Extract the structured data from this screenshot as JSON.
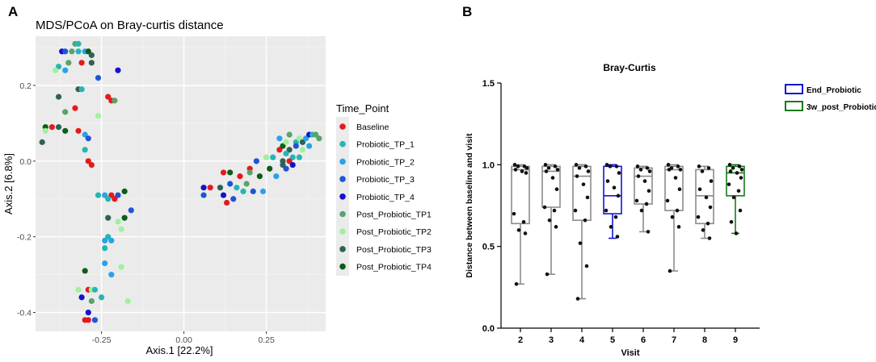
{
  "panels": {
    "a_label": "A",
    "b_label": "B"
  },
  "chart_data": [
    {
      "id": "pcoa",
      "type": "scatter",
      "title": "MDS/PCoA on Bray-curtis distance",
      "xlabel": "Axis.1   [22.2%]",
      "ylabel": "Axis.2   [6.8%]",
      "xlim": [
        -0.45,
        0.43
      ],
      "ylim": [
        -0.45,
        0.33
      ],
      "xticks": [
        -0.25,
        0.0,
        0.25
      ],
      "xtick_labels": [
        "-0.25",
        "0.00",
        "0.25"
      ],
      "yticks": [
        0.2,
        0.0,
        -0.2,
        -0.4
      ],
      "ytick_labels": [
        "0.2",
        "0.0",
        "-0.2",
        "-0.4"
      ],
      "grid": true,
      "legend": {
        "title": "Time_Point",
        "placement": "right",
        "entries": [
          {
            "name": "Baseline",
            "color": "#e31a1c"
          },
          {
            "name": "Probiotic_TP_1",
            "color": "#26b5b5"
          },
          {
            "name": "Probiotic_TP_2",
            "color": "#29a3e8"
          },
          {
            "name": "Probiotic_TP_3",
            "color": "#1f55d6"
          },
          {
            "name": "Probiotic_TP_4",
            "color": "#1212cf"
          },
          {
            "name": "Post_Probiotic_TP1",
            "color": "#5aa36a"
          },
          {
            "name": "Post_Probiotic_TP2",
            "color": "#9ef29e"
          },
          {
            "name": "Post_Probiotic_TP3",
            "color": "#2f6155"
          },
          {
            "name": "Post_Probiotic_TP4",
            "color": "#0b5e18"
          }
        ]
      },
      "points": [
        {
          "x": -0.37,
          "y": 0.29,
          "g": 4
        },
        {
          "x": -0.36,
          "y": 0.29,
          "g": 3
        },
        {
          "x": -0.33,
          "y": 0.31,
          "g": 5
        },
        {
          "x": -0.32,
          "y": 0.31,
          "g": 1
        },
        {
          "x": -0.34,
          "y": 0.29,
          "g": 5
        },
        {
          "x": -0.32,
          "y": 0.29,
          "g": 1
        },
        {
          "x": -0.3,
          "y": 0.29,
          "g": 2
        },
        {
          "x": -0.29,
          "y": 0.29,
          "g": 8
        },
        {
          "x": -0.28,
          "y": 0.28,
          "g": 7
        },
        {
          "x": -0.35,
          "y": 0.26,
          "g": 5
        },
        {
          "x": -0.31,
          "y": 0.26,
          "g": 0
        },
        {
          "x": -0.28,
          "y": 0.26,
          "g": 7
        },
        {
          "x": -0.38,
          "y": 0.25,
          "g": 1
        },
        {
          "x": -0.39,
          "y": 0.24,
          "g": 6
        },
        {
          "x": -0.36,
          "y": 0.24,
          "g": 2
        },
        {
          "x": -0.26,
          "y": 0.22,
          "g": 3
        },
        {
          "x": -0.32,
          "y": 0.19,
          "g": 7
        },
        {
          "x": -0.31,
          "y": 0.19,
          "g": 1
        },
        {
          "x": -0.2,
          "y": 0.24,
          "g": 4
        },
        {
          "x": -0.23,
          "y": 0.17,
          "g": 0
        },
        {
          "x": -0.22,
          "y": 0.16,
          "g": 0
        },
        {
          "x": -0.21,
          "y": 0.16,
          "g": 5
        },
        {
          "x": -0.38,
          "y": 0.17,
          "g": 7
        },
        {
          "x": -0.33,
          "y": 0.14,
          "g": 0
        },
        {
          "x": -0.36,
          "y": 0.13,
          "g": 5
        },
        {
          "x": -0.26,
          "y": 0.12,
          "g": 6
        },
        {
          "x": -0.42,
          "y": 0.09,
          "g": 8
        },
        {
          "x": -0.4,
          "y": 0.09,
          "g": 0
        },
        {
          "x": -0.38,
          "y": 0.09,
          "g": 7
        },
        {
          "x": -0.36,
          "y": 0.08,
          "g": 8
        },
        {
          "x": -0.32,
          "y": 0.08,
          "g": 0
        },
        {
          "x": -0.3,
          "y": 0.07,
          "g": 2
        },
        {
          "x": -0.29,
          "y": 0.06,
          "g": 3
        },
        {
          "x": -0.43,
          "y": 0.05,
          "g": 7
        },
        {
          "x": -0.42,
          "y": 0.08,
          "g": 6
        },
        {
          "x": -0.3,
          "y": 0.03,
          "g": 1
        },
        {
          "x": -0.29,
          "y": 0.0,
          "g": 0
        },
        {
          "x": -0.28,
          "y": -0.01,
          "g": 0
        },
        {
          "x": -0.26,
          "y": -0.09,
          "g": 1
        },
        {
          "x": -0.24,
          "y": -0.09,
          "g": 2
        },
        {
          "x": -0.22,
          "y": -0.09,
          "g": 0
        },
        {
          "x": -0.2,
          "y": -0.09,
          "g": 3
        },
        {
          "x": -0.18,
          "y": -0.08,
          "g": 8
        },
        {
          "x": -0.21,
          "y": -0.1,
          "g": 0
        },
        {
          "x": -0.23,
          "y": -0.1,
          "g": 1
        },
        {
          "x": -0.16,
          "y": -0.13,
          "g": 3
        },
        {
          "x": -0.18,
          "y": -0.15,
          "g": 8
        },
        {
          "x": -0.2,
          "y": -0.16,
          "g": 6
        },
        {
          "x": -0.23,
          "y": -0.15,
          "g": 7
        },
        {
          "x": -0.24,
          "y": -0.21,
          "g": 2
        },
        {
          "x": -0.23,
          "y": -0.2,
          "g": 1
        },
        {
          "x": -0.22,
          "y": -0.21,
          "g": 2
        },
        {
          "x": -0.24,
          "y": -0.23,
          "g": 1
        },
        {
          "x": -0.19,
          "y": -0.18,
          "g": 6
        },
        {
          "x": -0.24,
          "y": -0.27,
          "g": 2
        },
        {
          "x": -0.19,
          "y": -0.28,
          "g": 6
        },
        {
          "x": -0.22,
          "y": -0.3,
          "g": 2
        },
        {
          "x": -0.3,
          "y": -0.29,
          "g": 8
        },
        {
          "x": -0.32,
          "y": -0.34,
          "g": 6
        },
        {
          "x": -0.29,
          "y": -0.34,
          "g": 0
        },
        {
          "x": -0.28,
          "y": -0.34,
          "g": 6
        },
        {
          "x": -0.25,
          "y": -0.36,
          "g": 1
        },
        {
          "x": -0.27,
          "y": -0.34,
          "g": 1
        },
        {
          "x": -0.31,
          "y": -0.36,
          "g": 4
        },
        {
          "x": -0.28,
          "y": -0.37,
          "g": 5
        },
        {
          "x": -0.17,
          "y": -0.37,
          "g": 6
        },
        {
          "x": -0.29,
          "y": -0.4,
          "g": 4
        },
        {
          "x": -0.29,
          "y": -0.42,
          "g": 0
        },
        {
          "x": -0.27,
          "y": -0.42,
          "g": 3
        },
        {
          "x": -0.3,
          "y": -0.42,
          "g": 0
        },
        {
          "x": 0.06,
          "y": -0.07,
          "g": 4
        },
        {
          "x": 0.06,
          "y": -0.09,
          "g": 3
        },
        {
          "x": 0.08,
          "y": -0.07,
          "g": 0
        },
        {
          "x": 0.11,
          "y": -0.07,
          "g": 7
        },
        {
          "x": 0.12,
          "y": -0.09,
          "g": 4
        },
        {
          "x": 0.13,
          "y": -0.11,
          "g": 0
        },
        {
          "x": 0.14,
          "y": -0.06,
          "g": 3
        },
        {
          "x": 0.15,
          "y": -0.1,
          "g": 3
        },
        {
          "x": 0.16,
          "y": -0.07,
          "g": 1
        },
        {
          "x": 0.17,
          "y": -0.04,
          "g": 0
        },
        {
          "x": 0.18,
          "y": -0.08,
          "g": 1
        },
        {
          "x": 0.19,
          "y": -0.06,
          "g": 5
        },
        {
          "x": 0.2,
          "y": -0.02,
          "g": 0
        },
        {
          "x": 0.21,
          "y": -0.08,
          "g": 3
        },
        {
          "x": 0.22,
          "y": 0.0,
          "g": 3
        },
        {
          "x": 0.23,
          "y": -0.04,
          "g": 8
        },
        {
          "x": 0.24,
          "y": -0.08,
          "g": 2
        },
        {
          "x": 0.25,
          "y": 0.01,
          "g": 6
        },
        {
          "x": 0.26,
          "y": -0.02,
          "g": 8
        },
        {
          "x": 0.27,
          "y": 0.01,
          "g": 1
        },
        {
          "x": 0.28,
          "y": -0.04,
          "g": 2
        },
        {
          "x": 0.29,
          "y": 0.03,
          "g": 0
        },
        {
          "x": 0.3,
          "y": 0.0,
          "g": 7
        },
        {
          "x": 0.31,
          "y": -0.02,
          "g": 3
        },
        {
          "x": 0.12,
          "y": -0.03,
          "g": 0
        },
        {
          "x": 0.14,
          "y": -0.03,
          "g": 8
        },
        {
          "x": 0.2,
          "y": -0.03,
          "g": 5
        },
        {
          "x": 0.29,
          "y": 0.06,
          "g": 2
        },
        {
          "x": 0.3,
          "y": 0.04,
          "g": 8
        },
        {
          "x": 0.31,
          "y": 0.05,
          "g": 6
        },
        {
          "x": 0.32,
          "y": 0.03,
          "g": 7
        },
        {
          "x": 0.32,
          "y": 0.07,
          "g": 5
        },
        {
          "x": 0.33,
          "y": 0.01,
          "g": 1
        },
        {
          "x": 0.34,
          "y": 0.05,
          "g": 1
        },
        {
          "x": 0.35,
          "y": 0.06,
          "g": 6
        },
        {
          "x": 0.34,
          "y": 0.04,
          "g": 3
        },
        {
          "x": 0.36,
          "y": 0.05,
          "g": 7
        },
        {
          "x": 0.37,
          "y": 0.06,
          "g": 2
        },
        {
          "x": 0.38,
          "y": 0.07,
          "g": 4
        },
        {
          "x": 0.39,
          "y": 0.07,
          "g": 1
        },
        {
          "x": 0.4,
          "y": 0.07,
          "g": 5
        },
        {
          "x": 0.41,
          "y": 0.06,
          "g": 5
        },
        {
          "x": 0.38,
          "y": 0.04,
          "g": 2
        },
        {
          "x": 0.36,
          "y": 0.03,
          "g": 6
        },
        {
          "x": 0.32,
          "y": 0.0,
          "g": 0
        },
        {
          "x": 0.31,
          "y": 0.02,
          "g": 1
        },
        {
          "x": 0.3,
          "y": -0.01,
          "g": 7
        },
        {
          "x": 0.35,
          "y": 0.01,
          "g": 1
        },
        {
          "x": 0.33,
          "y": -0.01,
          "g": 4
        }
      ]
    },
    {
      "id": "boxplot",
      "type": "box",
      "title": "Bray-Curtis",
      "xlabel": "Visit",
      "ylabel": "Distance between baseline and visit",
      "ylim": [
        0.0,
        1.5
      ],
      "yticks": [
        0.0,
        0.5,
        1.0,
        1.5
      ],
      "ytick_labels": [
        "0.0",
        "0.5",
        "1.0",
        "1.5"
      ],
      "categories": [
        "2",
        "3",
        "4",
        "5",
        "6",
        "7",
        "8",
        "9"
      ],
      "legend": {
        "placement": "top-right",
        "entries": [
          {
            "name": "End_Probiotic",
            "color": "#1414d9"
          },
          {
            "name": "3w_post_Probiotic",
            "color": "#1a7a1a"
          }
        ]
      },
      "boxes": [
        {
          "visit": "2",
          "min": 0.27,
          "q1": 0.64,
          "median": 0.97,
          "q3": 0.99,
          "max": 1.0,
          "color": "#8c8c8c",
          "points": [
            1.0,
            0.99,
            0.99,
            0.98,
            0.97,
            0.96,
            0.95,
            0.7,
            0.65,
            0.6,
            0.58,
            0.27
          ]
        },
        {
          "visit": "3",
          "min": 0.33,
          "q1": 0.74,
          "median": 0.96,
          "q3": 0.99,
          "max": 1.0,
          "color": "#8c8c8c",
          "points": [
            1.0,
            0.99,
            0.98,
            0.97,
            0.96,
            0.92,
            0.85,
            0.74,
            0.72,
            0.66,
            0.62,
            0.33
          ]
        },
        {
          "visit": "4",
          "min": 0.18,
          "q1": 0.66,
          "median": 0.93,
          "q3": 0.99,
          "max": 1.0,
          "color": "#8c8c8c",
          "points": [
            1.0,
            0.99,
            0.98,
            0.96,
            0.93,
            0.88,
            0.8,
            0.72,
            0.66,
            0.52,
            0.38,
            0.18
          ]
        },
        {
          "visit": "5",
          "min": 0.55,
          "q1": 0.7,
          "median": 0.81,
          "q3": 0.99,
          "max": 1.0,
          "color": "#1414d9",
          "points": [
            1.0,
            0.99,
            0.99,
            0.95,
            0.9,
            0.86,
            0.81,
            0.72,
            0.68,
            0.62,
            0.56
          ]
        },
        {
          "visit": "6",
          "min": 0.59,
          "q1": 0.76,
          "median": 0.93,
          "q3": 0.98,
          "max": 0.99,
          "color": "#8c8c8c",
          "points": [
            0.99,
            0.98,
            0.97,
            0.96,
            0.93,
            0.9,
            0.84,
            0.78,
            0.76,
            0.72,
            0.59
          ]
        },
        {
          "visit": "7",
          "min": 0.35,
          "q1": 0.72,
          "median": 0.97,
          "q3": 0.99,
          "max": 1.0,
          "color": "#8c8c8c",
          "points": [
            1.0,
            0.99,
            0.98,
            0.97,
            0.97,
            0.92,
            0.85,
            0.78,
            0.72,
            0.68,
            0.62,
            0.35
          ]
        },
        {
          "visit": "8",
          "min": 0.55,
          "q1": 0.64,
          "median": 0.81,
          "q3": 0.97,
          "max": 0.99,
          "color": "#8c8c8c",
          "points": [
            0.99,
            0.98,
            0.96,
            0.9,
            0.85,
            0.8,
            0.74,
            0.68,
            0.64,
            0.6,
            0.55
          ]
        },
        {
          "visit": "9",
          "min": 0.58,
          "q1": 0.81,
          "median": 0.95,
          "q3": 0.99,
          "max": 1.0,
          "color": "#1a7a1a",
          "points": [
            1.0,
            0.99,
            0.98,
            0.97,
            0.96,
            0.95,
            0.92,
            0.88,
            0.84,
            0.8,
            0.72,
            0.65,
            0.58
          ]
        }
      ]
    }
  ]
}
